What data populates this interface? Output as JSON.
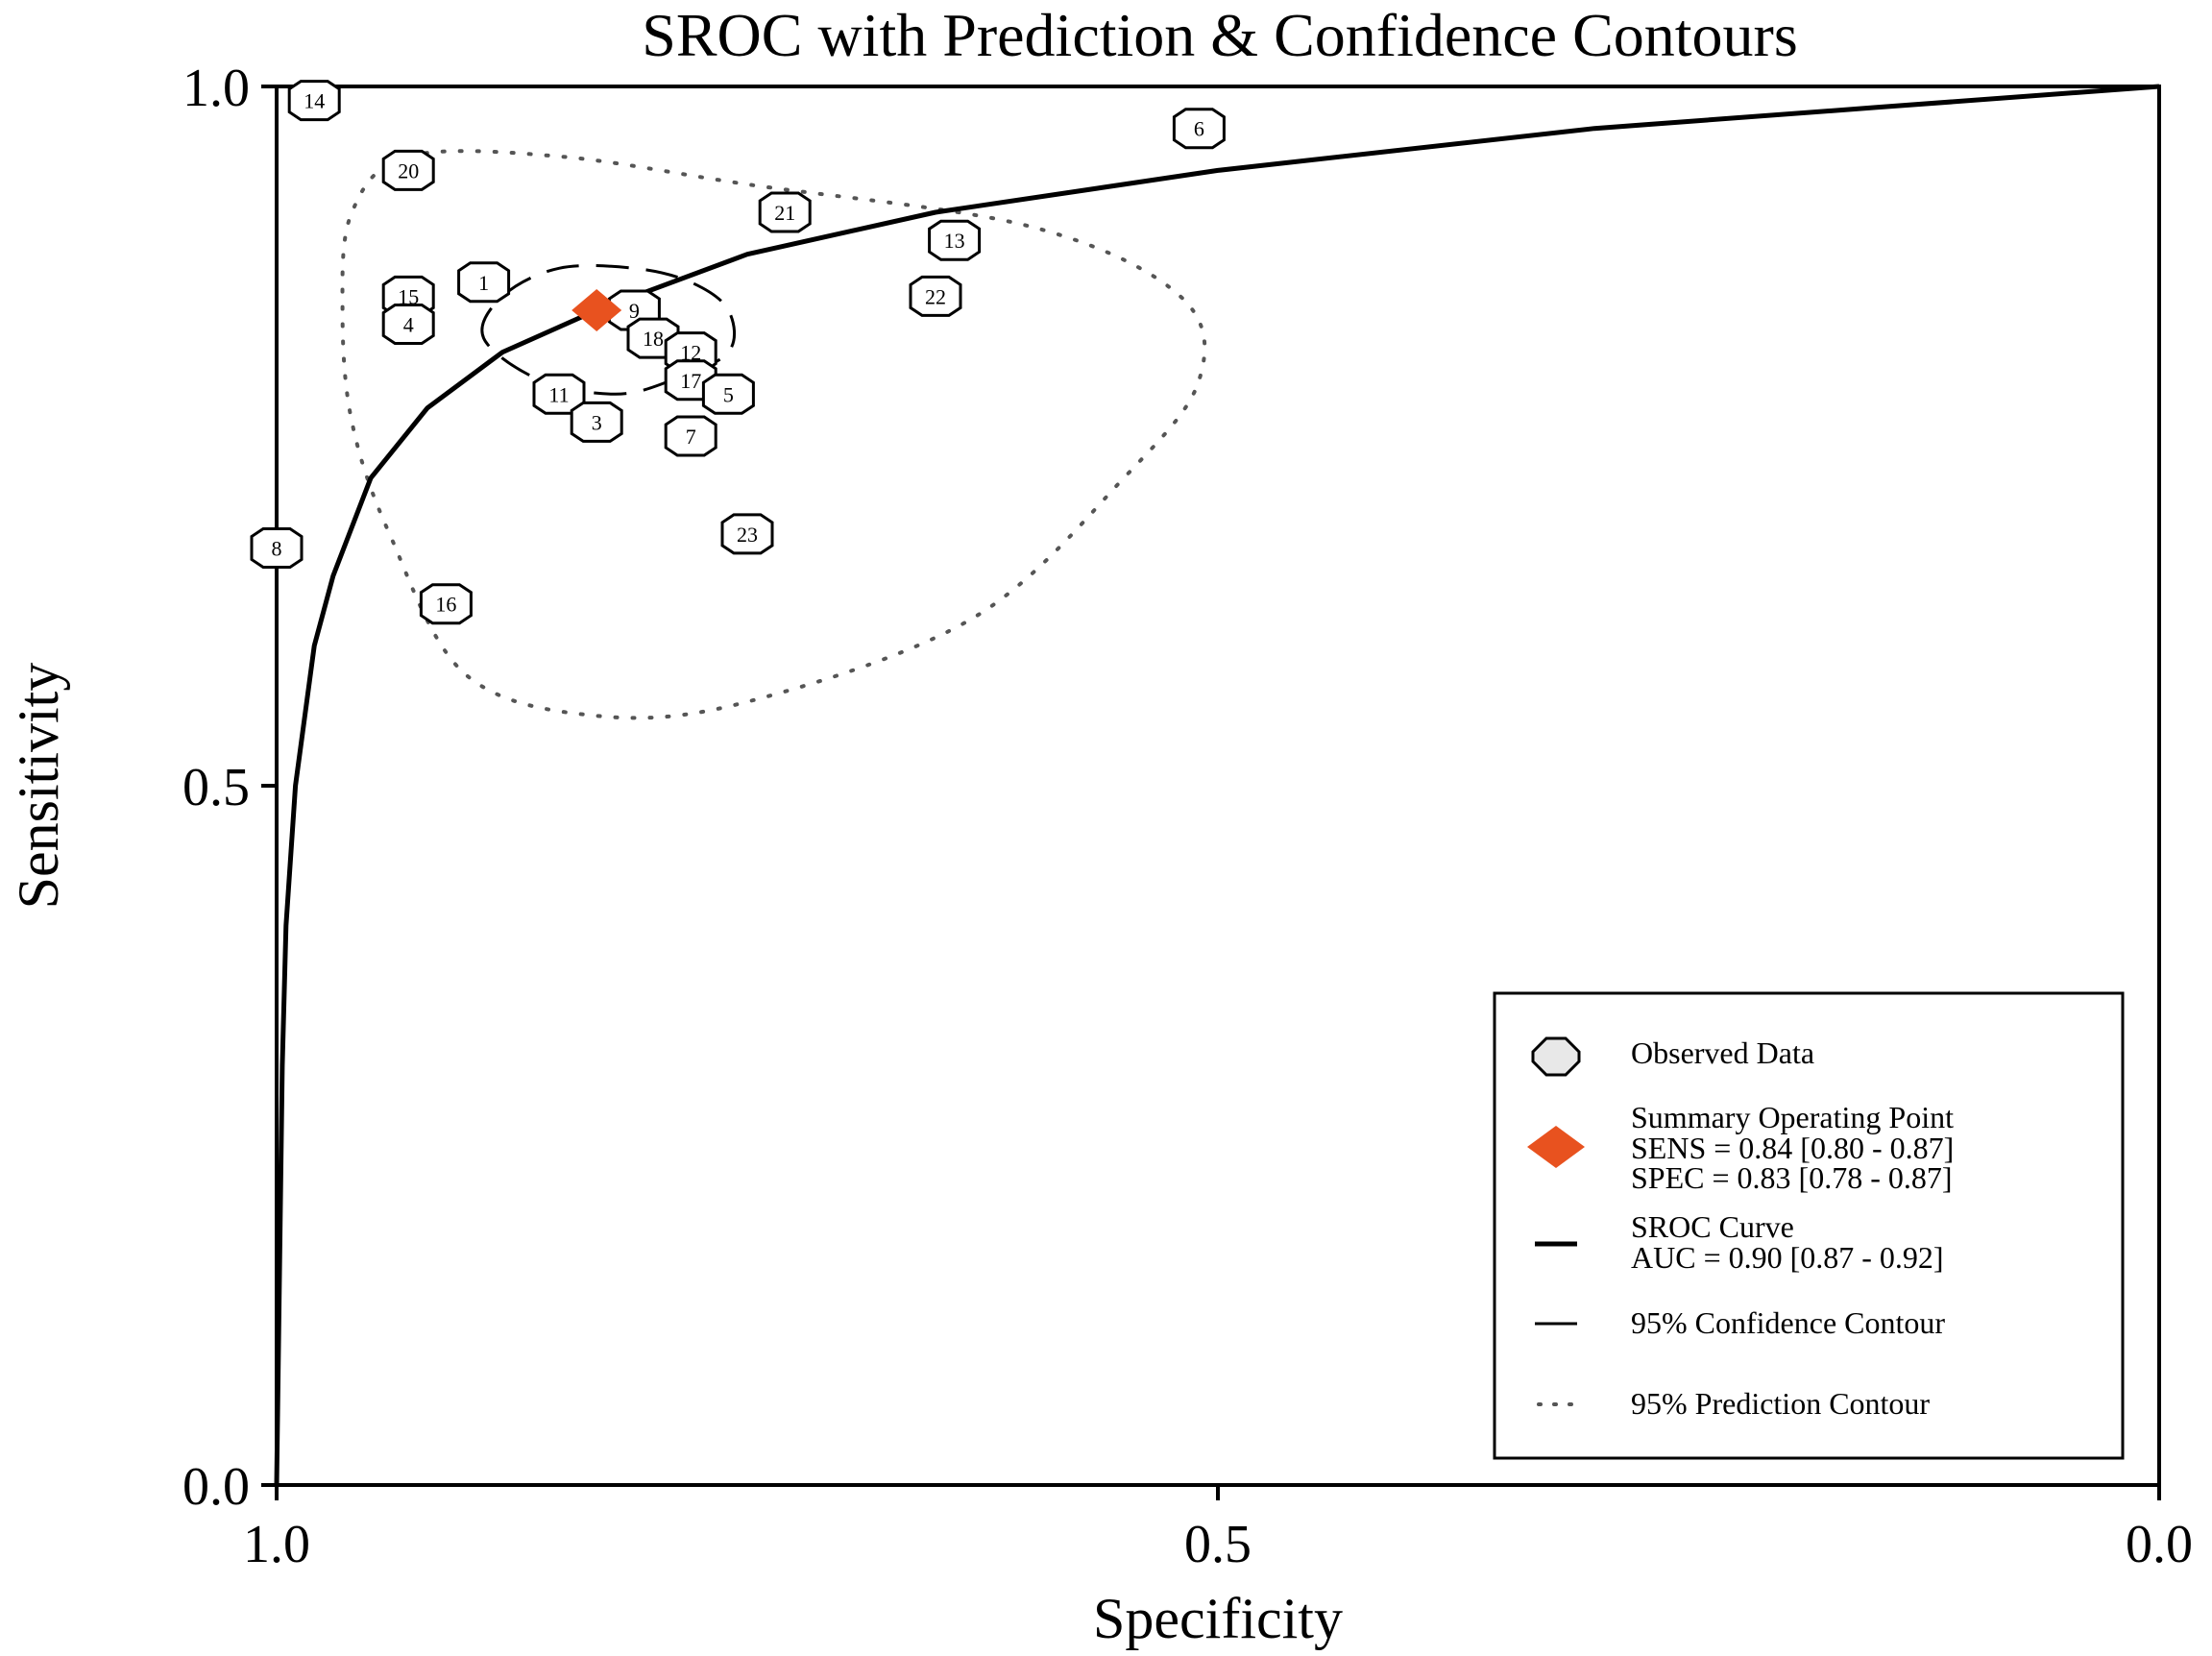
{
  "chart_data": {
    "type": "scatter",
    "title": "SROC with Prediction & Confidence Contours",
    "xlabel": "Specificity",
    "ylabel": "Sensitivity",
    "xlim": [
      1.0,
      0.0
    ],
    "ylim": [
      0.0,
      1.0
    ],
    "x_ticks": [
      1.0,
      0.5,
      0.0
    ],
    "x_tick_labels": [
      "1.0",
      "0.5",
      "0.0"
    ],
    "y_ticks": [
      0.0,
      0.5,
      1.0
    ],
    "y_tick_labels": [
      "0.0",
      "0.5",
      "1.0"
    ],
    "grid": false,
    "legend_position": "bottom-right",
    "observed_data": [
      {
        "id": "14",
        "specificity": 0.98,
        "sensitivity": 0.99
      },
      {
        "id": "20",
        "specificity": 0.93,
        "sensitivity": 0.94
      },
      {
        "id": "15",
        "specificity": 0.93,
        "sensitivity": 0.85
      },
      {
        "id": "4",
        "specificity": 0.93,
        "sensitivity": 0.83
      },
      {
        "id": "1",
        "specificity": 0.89,
        "sensitivity": 0.86
      },
      {
        "id": "9",
        "specificity": 0.81,
        "sensitivity": 0.84
      },
      {
        "id": "18",
        "specificity": 0.8,
        "sensitivity": 0.82
      },
      {
        "id": "12",
        "specificity": 0.78,
        "sensitivity": 0.81
      },
      {
        "id": "17",
        "specificity": 0.78,
        "sensitivity": 0.79
      },
      {
        "id": "5",
        "specificity": 0.76,
        "sensitivity": 0.78
      },
      {
        "id": "11",
        "specificity": 0.85,
        "sensitivity": 0.78
      },
      {
        "id": "3",
        "specificity": 0.83,
        "sensitivity": 0.76
      },
      {
        "id": "7",
        "specificity": 0.78,
        "sensitivity": 0.75
      },
      {
        "id": "21",
        "specificity": 0.73,
        "sensitivity": 0.91
      },
      {
        "id": "13",
        "specificity": 0.64,
        "sensitivity": 0.89
      },
      {
        "id": "22",
        "specificity": 0.65,
        "sensitivity": 0.85
      },
      {
        "id": "6",
        "specificity": 0.51,
        "sensitivity": 0.97
      },
      {
        "id": "23",
        "specificity": 0.75,
        "sensitivity": 0.68
      },
      {
        "id": "8",
        "specificity": 1.0,
        "sensitivity": 0.67
      },
      {
        "id": "16",
        "specificity": 0.91,
        "sensitivity": 0.63
      }
    ],
    "summary_point": {
      "specificity": 0.83,
      "sensitivity": 0.84
    },
    "sroc_curve": {
      "auc": 0.9,
      "points": [
        [
          1.0,
          0.0
        ],
        [
          0.999,
          0.1
        ],
        [
          0.997,
          0.3
        ],
        [
          0.995,
          0.4
        ],
        [
          0.99,
          0.5
        ],
        [
          0.98,
          0.6
        ],
        [
          0.97,
          0.65
        ],
        [
          0.95,
          0.72
        ],
        [
          0.92,
          0.77
        ],
        [
          0.88,
          0.81
        ],
        [
          0.83,
          0.84
        ],
        [
          0.75,
          0.88
        ],
        [
          0.65,
          0.91
        ],
        [
          0.5,
          0.94
        ],
        [
          0.3,
          0.97
        ],
        [
          0.15,
          0.985
        ],
        [
          0.0,
          1.0
        ]
      ]
    },
    "confidence_contour": {
      "points": [
        [
          0.89,
          0.82
        ],
        [
          0.88,
          0.85
        ],
        [
          0.85,
          0.87
        ],
        [
          0.81,
          0.87
        ],
        [
          0.78,
          0.86
        ],
        [
          0.76,
          0.84
        ],
        [
          0.76,
          0.81
        ],
        [
          0.79,
          0.79
        ],
        [
          0.82,
          0.78
        ],
        [
          0.86,
          0.79
        ],
        [
          0.89,
          0.82
        ]
      ]
    },
    "prediction_contour": {
      "points": [
        [
          0.93,
          0.95
        ],
        [
          0.85,
          0.95
        ],
        [
          0.75,
          0.93
        ],
        [
          0.6,
          0.9
        ],
        [
          0.52,
          0.85
        ],
        [
          0.51,
          0.79
        ],
        [
          0.55,
          0.72
        ],
        [
          0.63,
          0.62
        ],
        [
          0.75,
          0.56
        ],
        [
          0.83,
          0.55
        ],
        [
          0.9,
          0.58
        ],
        [
          0.94,
          0.68
        ],
        [
          0.96,
          0.76
        ],
        [
          0.965,
          0.84
        ],
        [
          0.96,
          0.91
        ],
        [
          0.93,
          0.95
        ]
      ]
    },
    "legend": {
      "observed": "Observed Data",
      "summary_title": "Summary Operating Point",
      "sens": "SENS = 0.84 [0.80 - 0.87]",
      "spec": "SPEC = 0.83 [0.78 - 0.87]",
      "sroc": "SROC Curve",
      "auc": "AUC = 0.90 [0.87 - 0.92]",
      "confidence": "95% Confidence Contour",
      "prediction": "95% Prediction Contour"
    },
    "colors": {
      "summary": "#e8521f",
      "line": "#000000",
      "dotted": "#555555"
    }
  }
}
